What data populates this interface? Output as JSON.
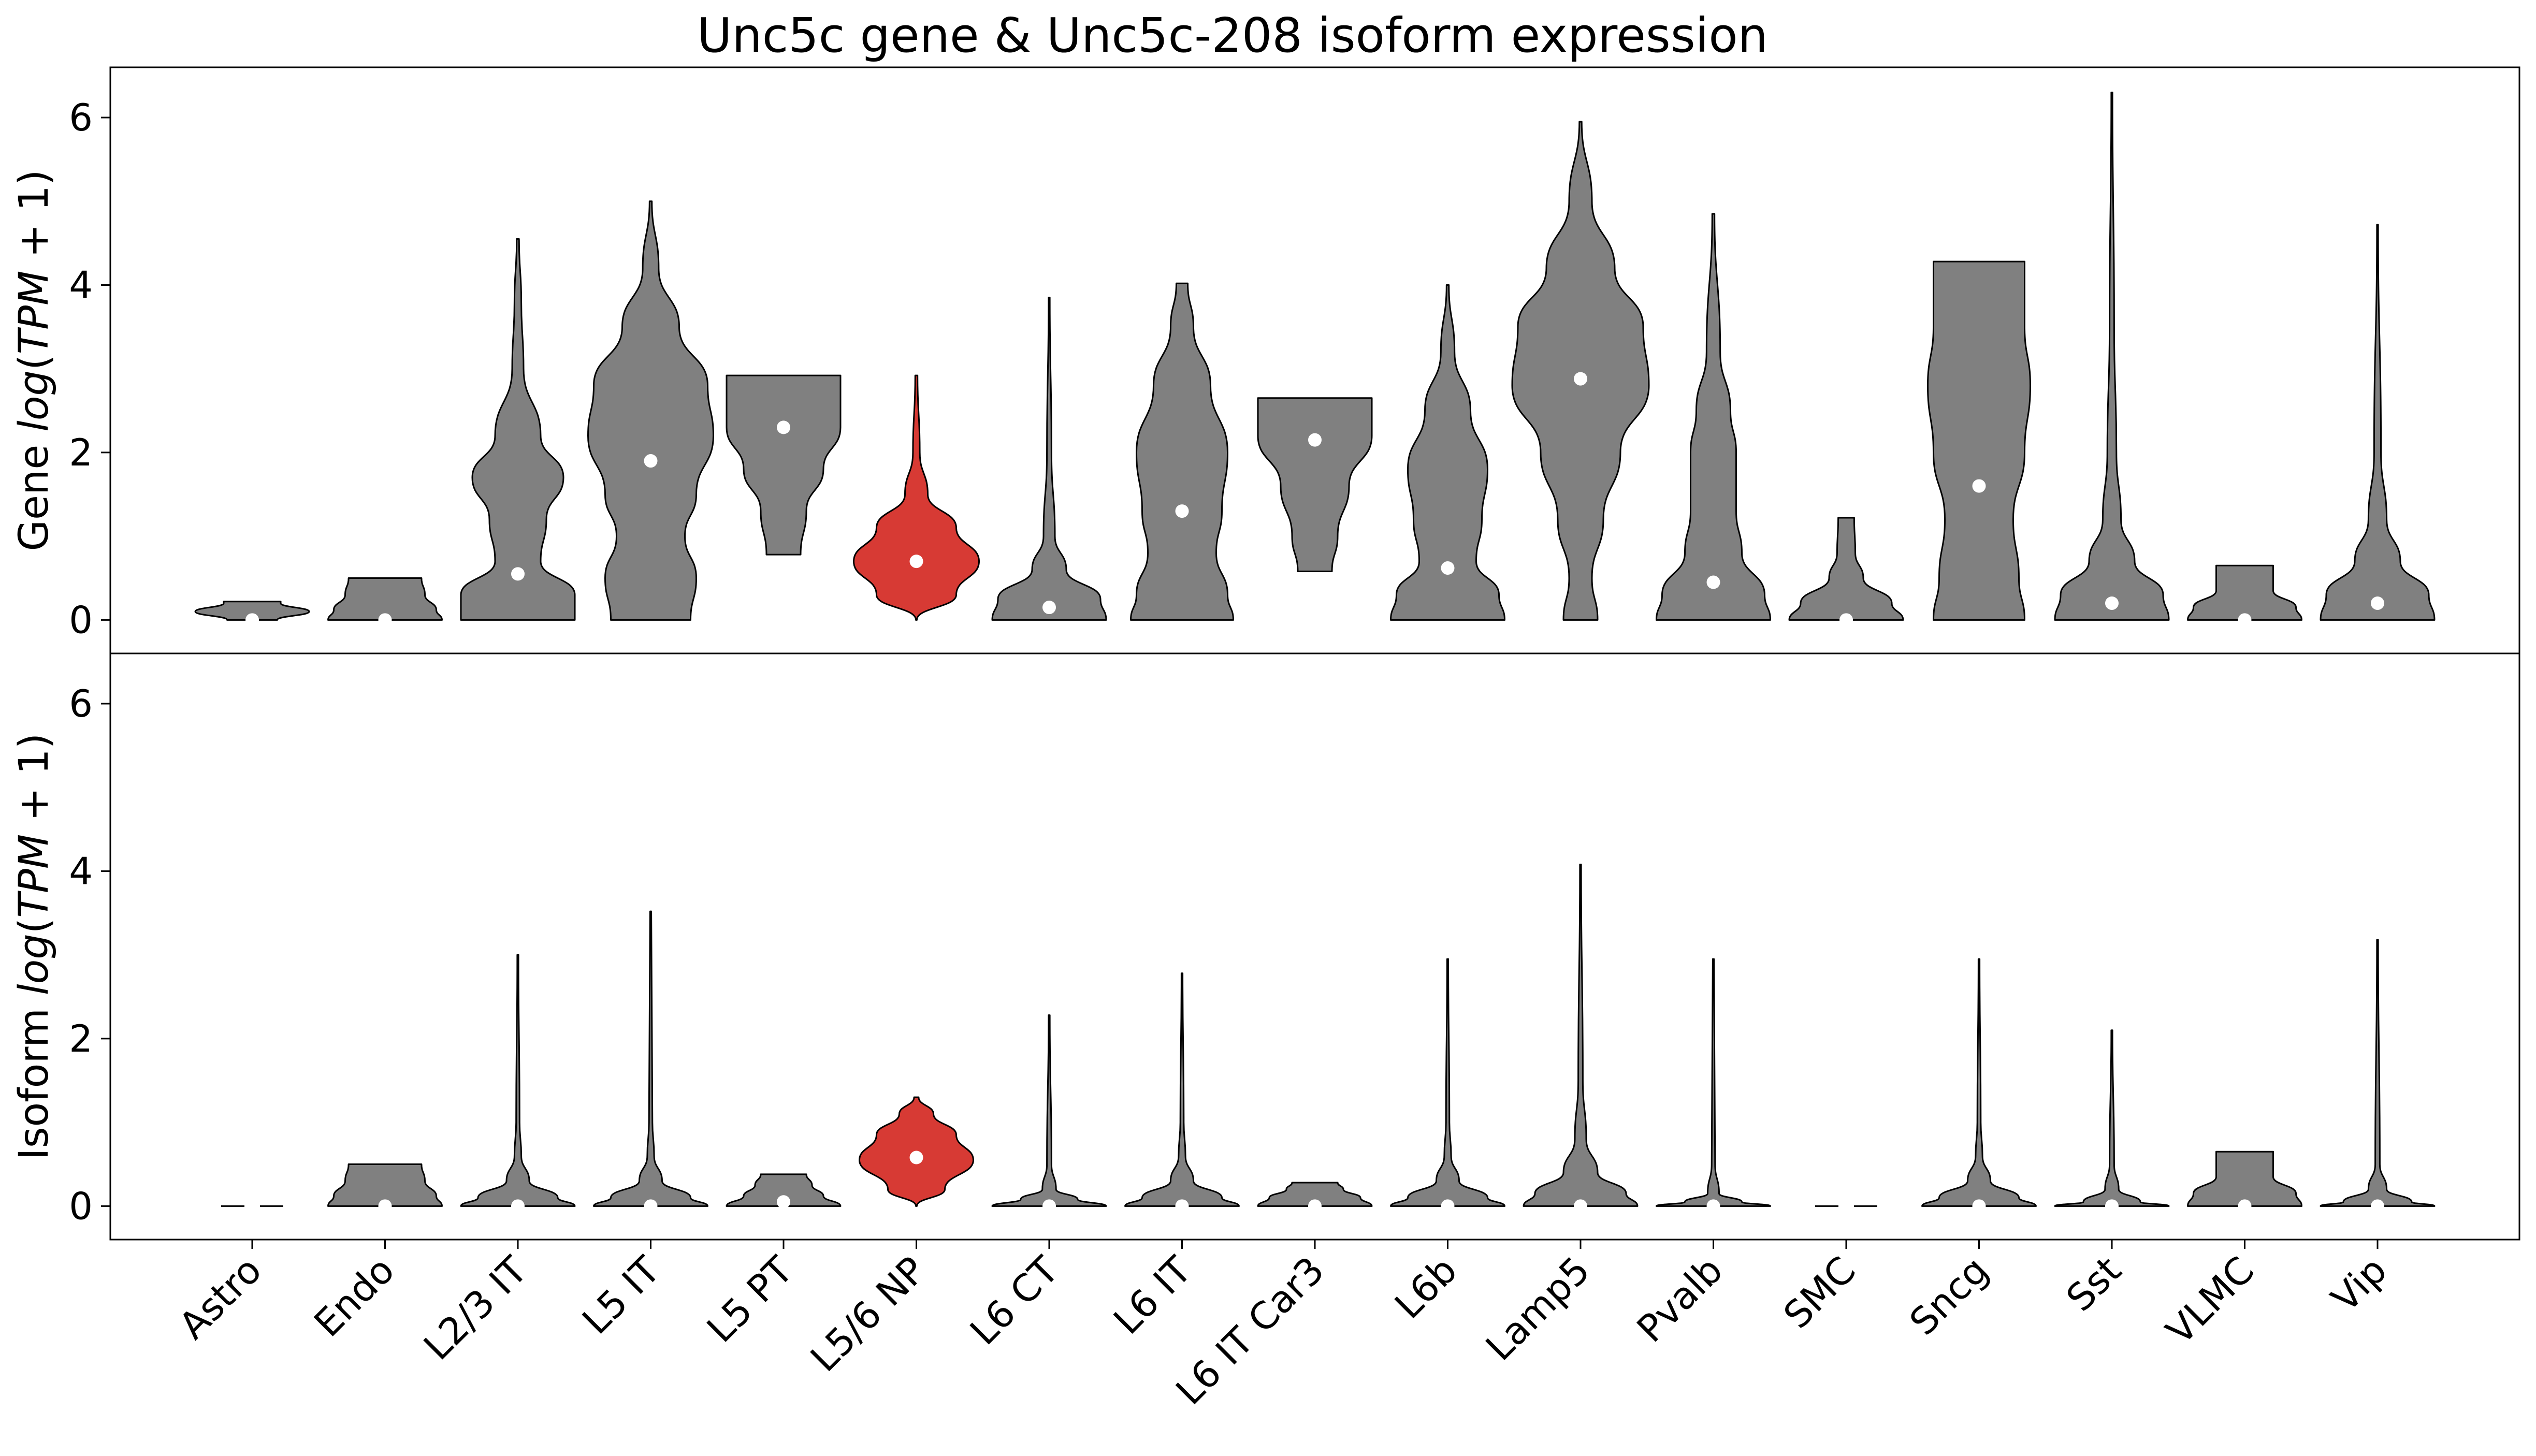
{
  "chart_data": {
    "type": "violin",
    "title": "Unc5c gene & Unc5c-208 isoform expression",
    "categories": [
      "Astro",
      "Endo",
      "L2/3 IT",
      "L5 IT",
      "L5 PT",
      "L5/6 NP",
      "L6 CT",
      "L6 IT",
      "L6 IT Car3",
      "L6b",
      "Lamp5",
      "Pvalb",
      "SMC",
      "Sncg",
      "Sst",
      "VLMC",
      "Vip"
    ],
    "highlight_category": "L5/6 NP",
    "colors": {
      "default": "#808080",
      "highlight": "#d73a34",
      "median_marker": "#ffffff",
      "outline": "#000000"
    },
    "ylim": [
      -0.4,
      6.6
    ],
    "yticks": [
      0,
      2,
      4,
      6
    ],
    "panels": [
      {
        "ylabel_prefix": "Gene ",
        "ylabel_math": "log(TPM + 1)",
        "series": [
          {
            "name": "Astro",
            "median": 0.0,
            "max": 0.22,
            "shape": [
              [
                0,
                0.22
              ],
              [
                0.1,
                0.5
              ],
              [
                0.2,
                0.25
              ],
              [
                0.22,
                0.25
              ]
            ]
          },
          {
            "name": "Endo",
            "median": 0.0,
            "max": 0.5,
            "shape": [
              [
                0,
                0.5
              ],
              [
                0.12,
                0.45
              ],
              [
                0.3,
                0.35
              ],
              [
                0.5,
                0.32
              ]
            ]
          },
          {
            "name": "L2/3 IT",
            "median": 0.55,
            "max": 4.55,
            "shape": [
              [
                0,
                0.5
              ],
              [
                0.3,
                0.5
              ],
              [
                0.7,
                0.2
              ],
              [
                1.2,
                0.25
              ],
              [
                1.7,
                0.4
              ],
              [
                2.2,
                0.2
              ],
              [
                3.0,
                0.05
              ],
              [
                3.8,
                0.03
              ],
              [
                4.55,
                0.01
              ]
            ]
          },
          {
            "name": "L5 IT",
            "median": 1.9,
            "max": 5.0,
            "shape": [
              [
                0,
                0.35
              ],
              [
                0.5,
                0.4
              ],
              [
                1.0,
                0.3
              ],
              [
                1.5,
                0.4
              ],
              [
                2.2,
                0.55
              ],
              [
                2.8,
                0.5
              ],
              [
                3.5,
                0.25
              ],
              [
                4.2,
                0.07
              ],
              [
                5.0,
                0.01
              ]
            ]
          },
          {
            "name": "L5 PT",
            "median": 2.3,
            "max": 2.92,
            "min": 0.78,
            "shape": [
              [
                0.78,
                0.15
              ],
              [
                1.3,
                0.2
              ],
              [
                1.8,
                0.35
              ],
              [
                2.3,
                0.5
              ],
              [
                2.92,
                0.5
              ]
            ]
          },
          {
            "name": "L5/6 NP",
            "median": 0.7,
            "max": 2.92,
            "shape": [
              [
                0,
                0.0
              ],
              [
                0.3,
                0.35
              ],
              [
                0.7,
                0.55
              ],
              [
                1.1,
                0.35
              ],
              [
                1.5,
                0.1
              ],
              [
                2.0,
                0.03
              ],
              [
                2.92,
                0.01
              ]
            ]
          },
          {
            "name": "L6 CT",
            "median": 0.15,
            "max": 3.85,
            "shape": [
              [
                0,
                0.5
              ],
              [
                0.25,
                0.45
              ],
              [
                0.6,
                0.15
              ],
              [
                1.0,
                0.05
              ],
              [
                2.0,
                0.02
              ],
              [
                3.85,
                0.005
              ]
            ]
          },
          {
            "name": "L6 IT",
            "median": 1.3,
            "max": 4.02,
            "shape": [
              [
                0,
                0.45
              ],
              [
                0.3,
                0.4
              ],
              [
                0.8,
                0.3
              ],
              [
                1.3,
                0.35
              ],
              [
                2.0,
                0.4
              ],
              [
                2.8,
                0.25
              ],
              [
                3.5,
                0.1
              ],
              [
                4.02,
                0.05
              ]
            ]
          },
          {
            "name": "L6 IT Car3",
            "median": 2.15,
            "max": 2.65,
            "min": 0.58,
            "shape": [
              [
                0.58,
                0.15
              ],
              [
                1.0,
                0.2
              ],
              [
                1.6,
                0.3
              ],
              [
                2.2,
                0.5
              ],
              [
                2.65,
                0.5
              ]
            ]
          },
          {
            "name": "L6b",
            "median": 0.62,
            "max": 4.0,
            "shape": [
              [
                0,
                0.5
              ],
              [
                0.3,
                0.45
              ],
              [
                0.7,
                0.25
              ],
              [
                1.2,
                0.3
              ],
              [
                1.8,
                0.35
              ],
              [
                2.5,
                0.2
              ],
              [
                3.2,
                0.06
              ],
              [
                4.0,
                0.01
              ]
            ]
          },
          {
            "name": "Lamp5",
            "median": 2.88,
            "max": 5.95,
            "shape": [
              [
                0,
                0.15
              ],
              [
                0.5,
                0.1
              ],
              [
                1.2,
                0.2
              ],
              [
                2.0,
                0.35
              ],
              [
                2.8,
                0.6
              ],
              [
                3.5,
                0.55
              ],
              [
                4.2,
                0.3
              ],
              [
                5.0,
                0.1
              ],
              [
                5.95,
                0.01
              ]
            ]
          },
          {
            "name": "Pvalb",
            "median": 0.45,
            "max": 4.85,
            "shape": [
              [
                0,
                0.5
              ],
              [
                0.3,
                0.45
              ],
              [
                0.8,
                0.25
              ],
              [
                1.3,
                0.2
              ],
              [
                2.0,
                0.2
              ],
              [
                2.5,
                0.15
              ],
              [
                3.2,
                0.06
              ],
              [
                4.85,
                0.01
              ]
            ]
          },
          {
            "name": "SMC",
            "median": 0.0,
            "max": 1.22,
            "shape": [
              [
                0,
                0.5
              ],
              [
                0.2,
                0.4
              ],
              [
                0.5,
                0.15
              ],
              [
                0.8,
                0.08
              ],
              [
                1.22,
                0.07
              ]
            ]
          },
          {
            "name": "Sncg",
            "median": 1.6,
            "max": 4.28,
            "shape": [
              [
                0,
                0.4
              ],
              [
                0.5,
                0.35
              ],
              [
                1.2,
                0.3
              ],
              [
                2.0,
                0.4
              ],
              [
                2.8,
                0.45
              ],
              [
                3.5,
                0.4
              ],
              [
                4.28,
                0.4
              ]
            ]
          },
          {
            "name": "Sst",
            "median": 0.2,
            "max": 6.3,
            "shape": [
              [
                0,
                0.5
              ],
              [
                0.3,
                0.45
              ],
              [
                0.7,
                0.2
              ],
              [
                1.2,
                0.08
              ],
              [
                2.0,
                0.04
              ],
              [
                3.5,
                0.02
              ],
              [
                6.3,
                0.005
              ]
            ]
          },
          {
            "name": "VLMC",
            "median": 0.0,
            "max": 0.65,
            "shape": [
              [
                0,
                0.5
              ],
              [
                0.15,
                0.45
              ],
              [
                0.35,
                0.25
              ],
              [
                0.65,
                0.25
              ]
            ]
          },
          {
            "name": "Vip",
            "median": 0.2,
            "max": 4.72,
            "shape": [
              [
                0,
                0.5
              ],
              [
                0.3,
                0.45
              ],
              [
                0.7,
                0.2
              ],
              [
                1.2,
                0.08
              ],
              [
                2.0,
                0.03
              ],
              [
                4.72,
                0.005
              ]
            ]
          }
        ]
      },
      {
        "ylabel_prefix": "Isoform ",
        "ylabel_math": "log(TPM + 1)",
        "series": [
          {
            "name": "Astro",
            "median": null,
            "max": 0.0,
            "empty": true,
            "shape": []
          },
          {
            "name": "Endo",
            "median": 0.0,
            "max": 0.5,
            "shape": [
              [
                0,
                0.5
              ],
              [
                0.12,
                0.45
              ],
              [
                0.3,
                0.35
              ],
              [
                0.5,
                0.32
              ]
            ]
          },
          {
            "name": "L2/3 IT",
            "median": 0.0,
            "max": 3.0,
            "shape": [
              [
                0,
                0.5
              ],
              [
                0.1,
                0.35
              ],
              [
                0.3,
                0.1
              ],
              [
                0.6,
                0.03
              ],
              [
                1.0,
                0.015
              ],
              [
                3.0,
                0.005
              ]
            ]
          },
          {
            "name": "L5 IT",
            "median": 0.0,
            "max": 3.52,
            "shape": [
              [
                0,
                0.5
              ],
              [
                0.1,
                0.35
              ],
              [
                0.3,
                0.1
              ],
              [
                0.6,
                0.03
              ],
              [
                1.0,
                0.015
              ],
              [
                3.52,
                0.005
              ]
            ]
          },
          {
            "name": "L5 PT",
            "median": 0.05,
            "max": 0.38,
            "shape": [
              [
                0,
                0.5
              ],
              [
                0.12,
                0.35
              ],
              [
                0.25,
                0.25
              ],
              [
                0.38,
                0.2
              ]
            ]
          },
          {
            "name": "L5/6 NP",
            "median": 0.58,
            "max": 1.3,
            "shape": [
              [
                0,
                0.0
              ],
              [
                0.2,
                0.25
              ],
              [
                0.55,
                0.5
              ],
              [
                0.85,
                0.35
              ],
              [
                1.1,
                0.15
              ],
              [
                1.3,
                0.02
              ]
            ]
          },
          {
            "name": "L6 CT",
            "median": 0.0,
            "max": 2.28,
            "shape": [
              [
                0,
                0.5
              ],
              [
                0.08,
                0.25
              ],
              [
                0.2,
                0.06
              ],
              [
                0.5,
                0.02
              ],
              [
                2.28,
                0.005
              ]
            ]
          },
          {
            "name": "L6 IT",
            "median": 0.0,
            "max": 2.78,
            "shape": [
              [
                0,
                0.5
              ],
              [
                0.1,
                0.35
              ],
              [
                0.3,
                0.1
              ],
              [
                0.6,
                0.03
              ],
              [
                1.0,
                0.015
              ],
              [
                2.78,
                0.005
              ]
            ]
          },
          {
            "name": "L6 IT Car3",
            "median": 0.0,
            "max": 0.28,
            "shape": [
              [
                0,
                0.5
              ],
              [
                0.1,
                0.4
              ],
              [
                0.2,
                0.25
              ],
              [
                0.28,
                0.2
              ]
            ]
          },
          {
            "name": "L6b",
            "median": 0.0,
            "max": 2.95,
            "shape": [
              [
                0,
                0.5
              ],
              [
                0.1,
                0.35
              ],
              [
                0.3,
                0.1
              ],
              [
                0.6,
                0.03
              ],
              [
                1.0,
                0.015
              ],
              [
                2.95,
                0.005
              ]
            ]
          },
          {
            "name": "Lamp5",
            "median": 0.0,
            "max": 4.08,
            "shape": [
              [
                0,
                0.5
              ],
              [
                0.15,
                0.4
              ],
              [
                0.4,
                0.15
              ],
              [
                0.8,
                0.05
              ],
              [
                1.5,
                0.02
              ],
              [
                4.08,
                0.005
              ]
            ]
          },
          {
            "name": "Pvalb",
            "median": 0.0,
            "max": 2.95,
            "shape": [
              [
                0,
                0.5
              ],
              [
                0.05,
                0.25
              ],
              [
                0.15,
                0.05
              ],
              [
                0.5,
                0.015
              ],
              [
                2.95,
                0.005
              ]
            ]
          },
          {
            "name": "SMC",
            "median": null,
            "max": 0.0,
            "empty": true,
            "shape": []
          },
          {
            "name": "Sncg",
            "median": 0.0,
            "max": 2.95,
            "shape": [
              [
                0,
                0.5
              ],
              [
                0.1,
                0.35
              ],
              [
                0.3,
                0.1
              ],
              [
                0.6,
                0.03
              ],
              [
                1.0,
                0.015
              ],
              [
                2.95,
                0.005
              ]
            ]
          },
          {
            "name": "Sst",
            "median": 0.0,
            "max": 2.1,
            "shape": [
              [
                0,
                0.5
              ],
              [
                0.05,
                0.25
              ],
              [
                0.2,
                0.06
              ],
              [
                0.5,
                0.02
              ],
              [
                2.1,
                0.005
              ]
            ]
          },
          {
            "name": "VLMC",
            "median": 0.0,
            "max": 0.65,
            "shape": [
              [
                0,
                0.5
              ],
              [
                0.15,
                0.45
              ],
              [
                0.35,
                0.25
              ],
              [
                0.65,
                0.25
              ]
            ]
          },
          {
            "name": "Vip",
            "median": 0.0,
            "max": 3.18,
            "shape": [
              [
                0,
                0.5
              ],
              [
                0.05,
                0.3
              ],
              [
                0.2,
                0.08
              ],
              [
                0.5,
                0.02
              ],
              [
                3.18,
                0.005
              ]
            ]
          }
        ]
      }
    ]
  }
}
